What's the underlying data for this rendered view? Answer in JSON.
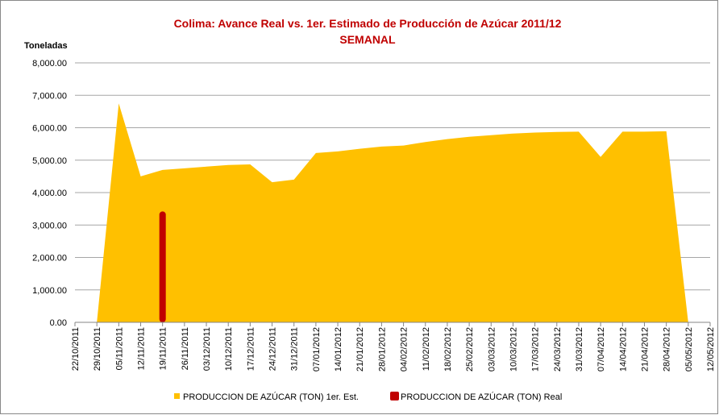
{
  "chart_data": {
    "type": "area",
    "title": "Colima: Avance Real vs. 1er. Estimado de Producción de Azúcar 2011/12",
    "subtitle": "SEMANAL",
    "y_label": "Toneladas",
    "categories": [
      "22/10/2011",
      "29/10/2011",
      "05/11/2011",
      "12/11/2011",
      "19/11/2011",
      "26/11/2011",
      "03/12/2011",
      "10/12/2011",
      "17/12/2011",
      "24/12/2011",
      "31/12/2011",
      "07/01/2012",
      "14/01/2012",
      "21/01/2012",
      "28/01/2012",
      "04/02/2012",
      "11/02/2012",
      "18/02/2012",
      "25/02/2012",
      "03/03/2012",
      "10/03/2012",
      "17/03/2012",
      "24/03/2012",
      "31/03/2012",
      "07/04/2012",
      "14/04/2012",
      "21/04/2012",
      "28/04/2012",
      "05/05/2012",
      "12/05/2012"
    ],
    "series": [
      {
        "name": "PRODUCCION DE AZÚCAR (TON) 1er. Est.",
        "color": "#ffc000",
        "type": "area",
        "values": [
          null,
          0,
          6750,
          4500,
          4700,
          4750,
          4800,
          4850,
          4870,
          4320,
          4400,
          5220,
          5270,
          5350,
          5420,
          5450,
          5560,
          5650,
          5720,
          5770,
          5820,
          5850,
          5870,
          5880,
          5100,
          5880,
          5880,
          5890,
          0,
          null
        ]
      },
      {
        "name": "PRODUCCION DE AZÚCAR (TON) Real",
        "color": "#c00000",
        "type": "bar",
        "values": [
          null,
          null,
          null,
          null,
          3420,
          null,
          null,
          null,
          null,
          null,
          null,
          null,
          null,
          null,
          null,
          null,
          null,
          null,
          null,
          null,
          null,
          null,
          null,
          null,
          null,
          null,
          null,
          null,
          null,
          null
        ]
      }
    ],
    "ylim": [
      0,
      8000
    ],
    "yticks": [
      {
        "value": 0,
        "label": "0.00"
      },
      {
        "value": 1000,
        "label": "1,000.00"
      },
      {
        "value": 2000,
        "label": "2,000.00"
      },
      {
        "value": 3000,
        "label": "3,000.00"
      },
      {
        "value": 4000,
        "label": "4,000.00"
      },
      {
        "value": 5000,
        "label": "5,000.00"
      },
      {
        "value": 6000,
        "label": "6,000.00"
      },
      {
        "value": 7000,
        "label": "7,000.00"
      },
      {
        "value": 8000,
        "label": "8,000.00"
      }
    ],
    "grid": true,
    "legend": "bottom"
  }
}
